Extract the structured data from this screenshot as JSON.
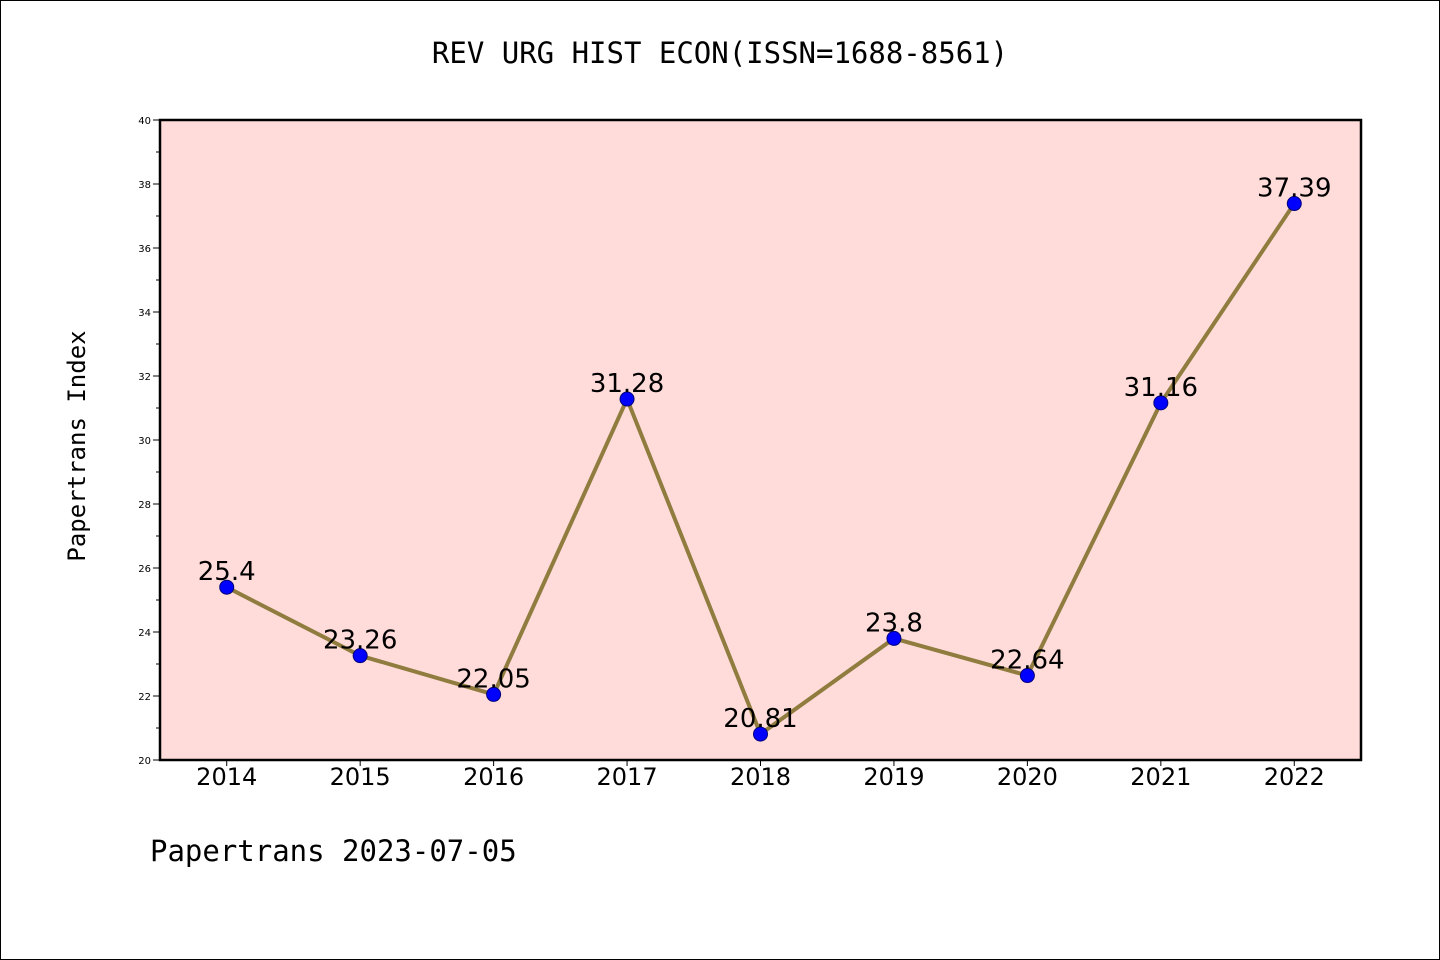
{
  "page": {
    "footer": "Papertrans 2023-07-05"
  },
  "colors": {
    "plot_background": "#FFDCDA",
    "line": "#8F7C3E",
    "marker": "#0000FF",
    "axis": "#000000"
  },
  "chart_data": {
    "type": "line",
    "title": "REV URG HIST ECON(ISSN=1688-8561)",
    "xlabel": "",
    "ylabel": "Papertrans Index",
    "categories": [
      "2014",
      "2015",
      "2016",
      "2017",
      "2018",
      "2019",
      "2020",
      "2021",
      "2022"
    ],
    "series": [
      {
        "values": [
          25.4,
          23.26,
          22.05,
          31.28,
          20.81,
          23.8,
          22.64,
          31.16,
          37.39
        ],
        "data_labels": [
          "25.4",
          "23.26",
          "22.05",
          "31.28",
          "20.81",
          "23.8",
          "22.64",
          "31.16",
          "37.39"
        ]
      }
    ],
    "ylim": [
      20,
      40
    ],
    "yticks": [
      20,
      22,
      24,
      26,
      28,
      30,
      32,
      34,
      36,
      38,
      40
    ],
    "grid": false,
    "legend": "none"
  }
}
